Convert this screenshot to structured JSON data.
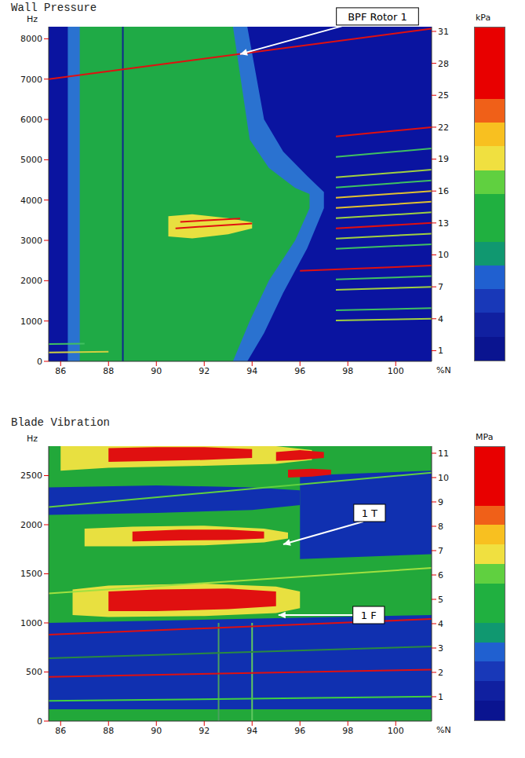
{
  "chart_data": [
    {
      "type": "spectrogram",
      "title": "Wall Pressure",
      "x_label": "%N",
      "y_label": "Hz",
      "color": "#0a14a0",
      "grid": false,
      "xlim": [
        85.5,
        101.5
      ],
      "xticks": [
        86,
        88,
        90,
        92,
        94,
        96,
        98,
        100
      ],
      "ylim": [
        0,
        8300
      ],
      "yticks": [
        0,
        1000,
        2000,
        3000,
        4000,
        5000,
        6000,
        7000,
        8000
      ],
      "y2lim": [
        0,
        31.44
      ],
      "y2ticks": [
        1,
        4,
        7,
        10,
        13,
        16,
        19,
        22,
        25,
        28,
        31
      ],
      "colorbar": {
        "label": "kPa",
        "colors": [
          "#e80000",
          "#e80000",
          "#e80000",
          "#f06018",
          "#f8c020",
          "#f0e040",
          "#60d040",
          "#20b040",
          "#20b040",
          "#109870",
          "#2060d0",
          "#1838b8",
          "#1020a0",
          "#0a1490"
        ]
      },
      "series": [
        {
          "type": "band",
          "color": "#2a72d0",
          "x": [
            86.3,
            87,
            90,
            93.8,
            94.5,
            95.3,
            96.3,
            97
          ],
          "low": [
            0,
            0,
            0,
            0,
            700,
            1700,
            2800,
            3800
          ],
          "high": [
            8300,
            8300,
            8300,
            8300,
            6000,
            5200,
            4600,
            4200
          ]
        },
        {
          "type": "band",
          "color": "#1faa46",
          "x": [
            86.8,
            87.5,
            90,
            93.2,
            93.9,
            94.7,
            95.8,
            96.4
          ],
          "low": [
            0,
            0,
            0,
            0,
            1000,
            2000,
            3000,
            3800
          ],
          "high": [
            8300,
            8300,
            8300,
            8300,
            5500,
            4800,
            4300,
            4150
          ]
        },
        {
          "type": "band",
          "color": "#e8e040",
          "x": [
            90.5,
            91.5,
            93,
            94
          ],
          "low": [
            3100,
            3050,
            3150,
            3300
          ],
          "high": [
            3600,
            3650,
            3550,
            3450
          ]
        },
        {
          "type": "line",
          "color": "#102890",
          "x": [
            88.6,
            88.6
          ],
          "values": [
            0,
            8300
          ]
        },
        {
          "type": "line",
          "color": "#e01010",
          "x": [
            85.5,
            101.5
          ],
          "values": [
            7000,
            8250
          ]
        },
        {
          "type": "line",
          "color": "#e01010",
          "x": [
            90.8,
            94
          ],
          "values": [
            3300,
            3420
          ]
        },
        {
          "type": "line",
          "color": "#e01010",
          "x": [
            91,
            93.5
          ],
          "values": [
            3460,
            3540
          ]
        },
        {
          "type": "line",
          "color": "#d0d040",
          "x": [
            85.5,
            88
          ],
          "values": [
            220,
            240
          ]
        },
        {
          "type": "line",
          "color": "#40c060",
          "x": [
            85.5,
            87
          ],
          "values": [
            430,
            440
          ]
        },
        {
          "type": "line",
          "color": "#a0d040",
          "x": [
            97.5,
            101.5
          ],
          "values": [
            1014,
            1056
          ]
        },
        {
          "type": "line",
          "color": "#40c060",
          "x": [
            97.5,
            101.5
          ],
          "values": [
            1268,
            1320
          ]
        },
        {
          "type": "line",
          "color": "#a0d040",
          "x": [
            97.5,
            101.5
          ],
          "values": [
            1775,
            1848
          ]
        },
        {
          "type": "line",
          "color": "#40c060",
          "x": [
            97.5,
            101.5
          ],
          "values": [
            2029,
            2112
          ]
        },
        {
          "type": "line",
          "color": "#e01010",
          "x": [
            96,
            101.5
          ],
          "values": [
            2247,
            2376
          ]
        },
        {
          "type": "line",
          "color": "#40c060",
          "x": [
            97.5,
            101.5
          ],
          "values": [
            2790,
            2904
          ]
        },
        {
          "type": "line",
          "color": "#a0d040",
          "x": [
            97.5,
            101.5
          ],
          "values": [
            3043,
            3168
          ]
        },
        {
          "type": "line",
          "color": "#e01010",
          "x": [
            97.5,
            101.5
          ],
          "values": [
            3297,
            3432
          ]
        },
        {
          "type": "line",
          "color": "#a0d040",
          "x": [
            97.5,
            101.5
          ],
          "values": [
            3550,
            3696
          ]
        },
        {
          "type": "line",
          "color": "#e0c030",
          "x": [
            97.5,
            101.5
          ],
          "values": [
            3804,
            3960
          ]
        },
        {
          "type": "line",
          "color": "#e0c030",
          "x": [
            97.5,
            101.5
          ],
          "values": [
            4058,
            4224
          ]
        },
        {
          "type": "line",
          "color": "#40c060",
          "x": [
            97.5,
            101.5
          ],
          "values": [
            4311,
            4488
          ]
        },
        {
          "type": "line",
          "color": "#a0d040",
          "x": [
            97.5,
            101.5
          ],
          "values": [
            4565,
            4752
          ]
        },
        {
          "type": "line",
          "color": "#40c060",
          "x": [
            97.5,
            101.5
          ],
          "values": [
            5072,
            5280
          ]
        },
        {
          "type": "line",
          "color": "#e01010",
          "x": [
            97.5,
            101.5
          ],
          "values": [
            5579,
            5808
          ]
        }
      ],
      "annotations": [
        {
          "text": "BPF Rotor 1",
          "x": 93.5,
          "y": 7620
        }
      ]
    },
    {
      "type": "spectrogram",
      "title": "Blade Vibration",
      "x_label": "%N",
      "y_label": "Hz",
      "color": "#22a83a",
      "grid": false,
      "xlim": [
        85.5,
        101.5
      ],
      "xticks": [
        86,
        88,
        90,
        92,
        94,
        96,
        98,
        100
      ],
      "ylim": [
        0,
        2800
      ],
      "yticks": [
        0,
        500,
        1000,
        1500,
        2000,
        2500
      ],
      "y2lim": [
        0,
        11.29
      ],
      "y2ticks": [
        1,
        2,
        3,
        4,
        5,
        6,
        7,
        8,
        9,
        10,
        11
      ],
      "colorbar": {
        "label": "MPa",
        "colors": [
          "#e80000",
          "#e80000",
          "#e80000",
          "#f06018",
          "#f8c020",
          "#f0e040",
          "#60d040",
          "#20b040",
          "#20b040",
          "#109870",
          "#2060d0",
          "#1838b8",
          "#1020a0",
          "#0a1490"
        ]
      },
      "series": [
        {
          "type": "band",
          "color": "#1030b0",
          "x": [
            85.5,
            101.5
          ],
          "low": [
            120,
            120
          ],
          "high": [
            1000,
            1080
          ]
        },
        {
          "type": "band",
          "color": "#1030b0",
          "x": [
            85.5,
            90,
            94,
            96
          ],
          "low": [
            2100,
            2120,
            2150,
            2200
          ],
          "high": [
            2380,
            2400,
            2380,
            2350
          ]
        },
        {
          "type": "band",
          "color": "#1030b0",
          "x": [
            96,
            101.5
          ],
          "low": [
            1650,
            1700
          ],
          "high": [
            2500,
            2550
          ]
        },
        {
          "type": "band",
          "color": "#e8e040",
          "x": [
            86,
            88,
            92,
            95,
            96.5
          ],
          "low": [
            2550,
            2580,
            2600,
            2620,
            2660
          ],
          "high": [
            2800,
            2800,
            2800,
            2800,
            2760
          ]
        },
        {
          "type": "band",
          "color": "#e01010",
          "x": [
            88,
            90,
            92,
            94
          ],
          "low": [
            2640,
            2650,
            2660,
            2680
          ],
          "high": [
            2780,
            2790,
            2790,
            2770
          ]
        },
        {
          "type": "band",
          "color": "#e8e040",
          "x": [
            87,
            89,
            92,
            94.5,
            95.5
          ],
          "low": [
            1780,
            1780,
            1790,
            1820,
            1860
          ],
          "high": [
            1960,
            1980,
            1990,
            1960,
            1920
          ]
        },
        {
          "type": "band",
          "color": "#e01010",
          "x": [
            89,
            91,
            93,
            94.5
          ],
          "low": [
            1830,
            1840,
            1845,
            1860
          ],
          "high": [
            1930,
            1950,
            1950,
            1930
          ]
        },
        {
          "type": "band",
          "color": "#e8e040",
          "x": [
            86.5,
            88,
            92,
            95,
            96
          ],
          "low": [
            1080,
            1060,
            1070,
            1100,
            1150
          ],
          "high": [
            1340,
            1380,
            1400,
            1370,
            1320
          ]
        },
        {
          "type": "band",
          "color": "#e01010",
          "x": [
            88,
            90,
            93,
            95
          ],
          "low": [
            1120,
            1120,
            1140,
            1170
          ],
          "high": [
            1320,
            1340,
            1350,
            1320
          ]
        },
        {
          "type": "band",
          "color": "#e01010",
          "x": [
            95,
            96,
            97
          ],
          "low": [
            2650,
            2660,
            2680
          ],
          "high": [
            2740,
            2760,
            2740
          ]
        },
        {
          "type": "band",
          "color": "#e01010",
          "x": [
            95.5,
            96.5,
            97.3
          ],
          "low": [
            2480,
            2490,
            2510
          ],
          "high": [
            2560,
            2570,
            2560
          ]
        },
        {
          "type": "line",
          "color": "#60c860",
          "x": [
            94,
            94
          ],
          "values": [
            0,
            1000
          ]
        },
        {
          "type": "line",
          "color": "#4aa060",
          "x": [
            92.6,
            92.6
          ],
          "values": [
            0,
            1000
          ]
        },
        {
          "type": "line",
          "color": "#40d040",
          "x": [
            85.5,
            101.5
          ],
          "values": [
            205,
            250
          ]
        },
        {
          "type": "line",
          "color": "#e01010",
          "x": [
            85.5,
            101.5
          ],
          "values": [
            450,
            525
          ]
        },
        {
          "type": "line",
          "color": "#2a8a40",
          "x": [
            85.5,
            101.5
          ],
          "values": [
            640,
            760
          ]
        },
        {
          "type": "line",
          "color": "#e01010",
          "x": [
            85.5,
            101.5
          ],
          "values": [
            880,
            1040
          ]
        },
        {
          "type": "line",
          "color": "#a0e040",
          "x": [
            85.5,
            101.5
          ],
          "values": [
            1300,
            1560
          ]
        },
        {
          "type": "line",
          "color": "#60d040",
          "x": [
            85.5,
            101.5
          ],
          "values": [
            2180,
            2530
          ]
        }
      ],
      "annotations": [
        {
          "text": "1 T",
          "x": 95.3,
          "y": 1800
        },
        {
          "text": "1 F",
          "x": 95.1,
          "y": 1080
        }
      ]
    }
  ]
}
